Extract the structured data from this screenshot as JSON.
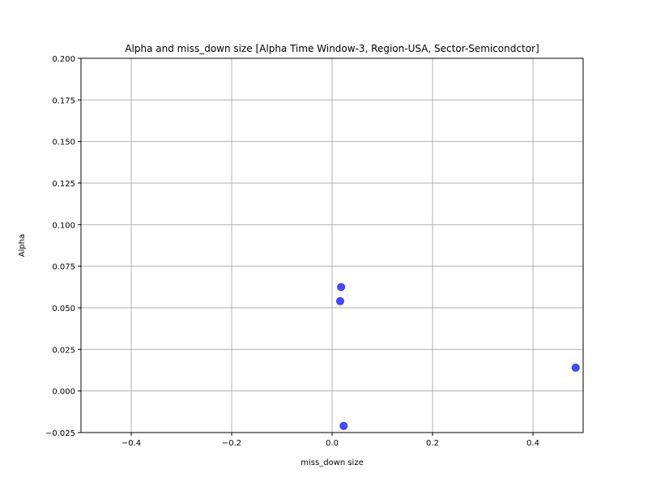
{
  "chart_data": {
    "type": "scatter",
    "title": "Alpha and miss_down size [Alpha Time Window-3, Region-USA, Sector-Semicondctor]",
    "xlabel": "miss_down size",
    "ylabel": "Alpha",
    "xlim": [
      -0.5,
      0.5
    ],
    "ylim": [
      -0.025,
      0.2
    ],
    "xticks": [
      -0.4,
      -0.2,
      0.0,
      0.2,
      0.4
    ],
    "xtick_labels": [
      "−0.4",
      "−0.2",
      "0.0",
      "0.2",
      "0.4"
    ],
    "yticks": [
      -0.025,
      0.0,
      0.025,
      0.05,
      0.075,
      0.1,
      0.125,
      0.15,
      0.175,
      0.2
    ],
    "ytick_labels": [
      "−0.025",
      "0.000",
      "0.025",
      "0.050",
      "0.075",
      "0.100",
      "0.125",
      "0.150",
      "0.175",
      "0.200"
    ],
    "grid": true,
    "point_color": "#0000ff",
    "points": [
      {
        "x": 0.018,
        "y": 0.0625
      },
      {
        "x": 0.016,
        "y": 0.054
      },
      {
        "x": 0.485,
        "y": 0.014
      },
      {
        "x": 0.023,
        "y": -0.021
      }
    ]
  }
}
